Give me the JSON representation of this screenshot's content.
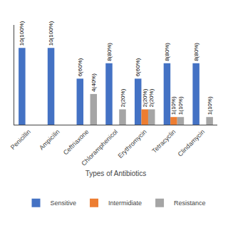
{
  "chart_data": {
    "type": "bar",
    "categories": [
      "Penicillin",
      "Ampicilin",
      "Ceftriaxone",
      "Chloramphenicol",
      "Erythromycin",
      "Tetracyclin",
      "Clindamycin"
    ],
    "series": [
      {
        "name": "Sensitive",
        "color": "#4472C4",
        "values": [
          10,
          10,
          6,
          8,
          6,
          8,
          8
        ],
        "value_labels": [
          "10(100%)",
          "10(100%)",
          "6(60%)",
          "8(80%)",
          "6(60%)",
          "8(80%)",
          "8(80%)"
        ]
      },
      {
        "name": "Intermidiate",
        "color": "#ED7D31",
        "values": [
          0,
          0,
          0,
          0,
          2,
          1,
          0
        ],
        "value_labels": [
          null,
          null,
          null,
          null,
          "2(20%)",
          "1(10%)",
          null
        ]
      },
      {
        "name": "Resistance",
        "color": "#A5A5A5",
        "values": [
          0,
          0,
          4,
          2,
          2,
          1,
          1
        ],
        "value_labels": [
          null,
          null,
          "4(40%)",
          "2(20%)",
          "2(20%)",
          "1(10%)",
          "1(10%)"
        ]
      }
    ],
    "x_label": "Types of Antibiotics",
    "ylim": [
      0,
      13
    ],
    "tick_labels": "x",
    "grid": false,
    "legend": "bottom"
  }
}
